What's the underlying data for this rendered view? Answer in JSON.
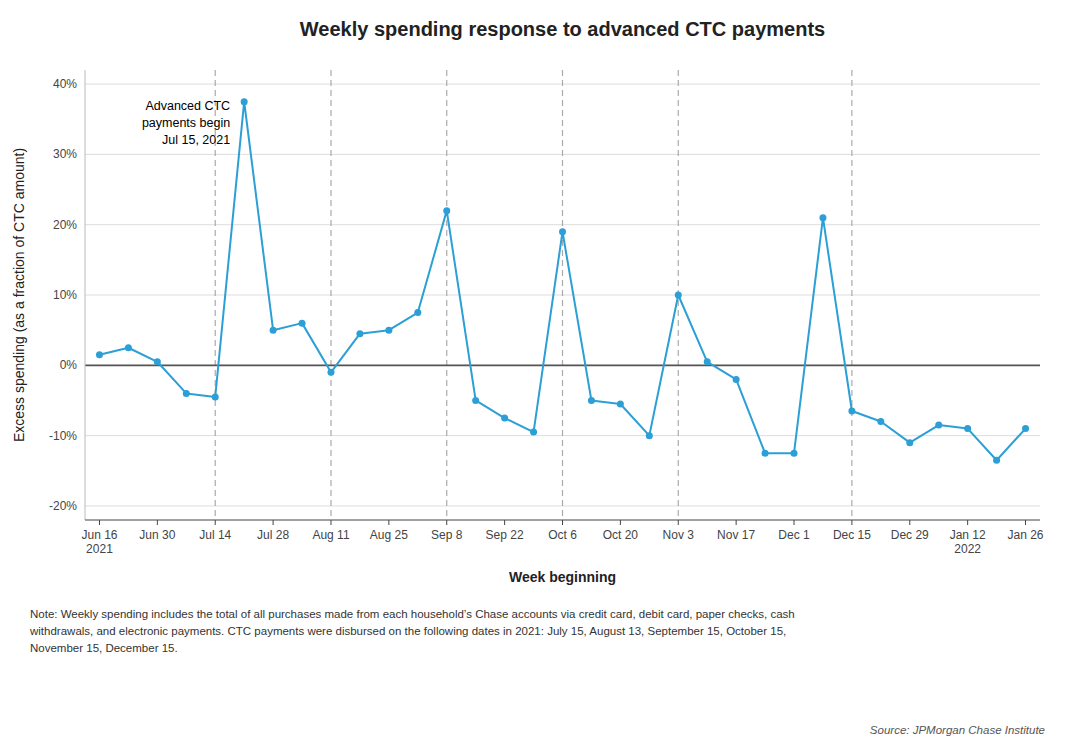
{
  "chart_data": {
    "type": "line",
    "title": "Weekly spending response to advanced CTC payments",
    "xlabel": "Week beginning",
    "ylabel": "Excess spending (as a fraction of CTC amount)",
    "categories": [
      "Jun 16\n2021",
      null,
      "Jun 30",
      null,
      "Jul 14",
      null,
      "Jul 28",
      null,
      "Aug 11",
      null,
      "Aug 25",
      null,
      "Sep 8",
      null,
      "Sep 22",
      null,
      "Oct 6",
      null,
      "Oct 20",
      null,
      "Nov 3",
      null,
      "Nov 17",
      null,
      "Dec 1",
      null,
      "Dec 15",
      null,
      "Dec 29",
      null,
      "Jan 12\n2022",
      null,
      "Jan 26"
    ],
    "values": [
      1.5,
      2.5,
      0.5,
      -4.0,
      -4.5,
      37.5,
      5.0,
      6.0,
      -1.0,
      4.5,
      5.0,
      7.5,
      22.0,
      -5.0,
      -7.5,
      -9.5,
      19.0,
      -5.0,
      -5.5,
      -10.0,
      10.0,
      0.5,
      -2.0,
      -12.5,
      -12.5,
      21.0,
      -6.5,
      -8.0,
      -11.0,
      -8.5,
      -9.0,
      -13.5,
      -9.0
    ],
    "color": "#2b9fd6",
    "marker": "circle",
    "vlines": [
      "Jul 14",
      "Aug 11",
      "Sep 8",
      "Oct 6",
      "Nov 3",
      "Dec 15"
    ],
    "hlines": [
      0
    ],
    "ylim": [
      -22,
      42
    ],
    "yticks": [
      {
        "value": -20,
        "label": "-20%"
      },
      {
        "value": -10,
        "label": "-10%"
      },
      {
        "value": 0,
        "label": "0%"
      },
      {
        "value": 10,
        "label": "10%"
      },
      {
        "value": 20,
        "label": "20%"
      },
      {
        "value": 30,
        "label": "30%"
      },
      {
        "value": 40,
        "label": "40%"
      }
    ],
    "grid": true,
    "annotation": "Advanced CTC\npayments begin\nJul 15, 2021",
    "note": "Note: Weekly spending includes the total of all purchases made from each household’s Chase accounts via credit card, debit card, paper checks, cash\nwithdrawals, and electronic payments. CTC payments were disbursed on the following dates in 2021: July 15, August 13, September 15, October 15,\nNovember 15, December 15.",
    "source": "Source: JPMorgan Chase Institute"
  }
}
